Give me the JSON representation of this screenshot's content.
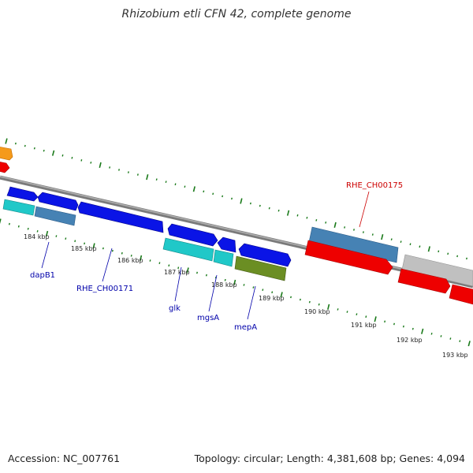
{
  "title": "Rhizobium etli CFN 42, complete genome",
  "footer": {
    "accession": "Accession: NC_007761",
    "summary": "Topology: circular; Length: 4,381,608 bp; Genes: 4,094"
  },
  "scale_ticks": [
    "184 kbp",
    "185 kbp",
    "186 kbp",
    "187 kbp",
    "188 kbp",
    "189 kbp",
    "190 kbp",
    "191 kbp",
    "192 kbp",
    "193 kbp"
  ],
  "gene_labels": [
    {
      "id": "dapB1",
      "text": "dapB1",
      "color": "#0000aa"
    },
    {
      "id": "RHE_CH00171",
      "text": "RHE_CH00171",
      "color": "#0000aa"
    },
    {
      "id": "glk",
      "text": "glk",
      "color": "#0000aa"
    },
    {
      "id": "mgsA",
      "text": "mgsA",
      "color": "#0000aa"
    },
    {
      "id": "mepA",
      "text": "mepA",
      "color": "#0000aa"
    },
    {
      "id": "RHE_CH00175",
      "text": "RHE_CH00175",
      "color": "#cc0000"
    }
  ],
  "colors": {
    "blue_gene": "#0a14e6",
    "steel_gene": "#4682b4",
    "cyan_gene": "#20c8c8",
    "olive_gene": "#6b8e23",
    "red_gene": "#ee0000",
    "grey_gene": "#c0c0c0",
    "orange_gene": "#f59a1a",
    "backbone": "#808080",
    "tick": "#1a7a1a"
  }
}
